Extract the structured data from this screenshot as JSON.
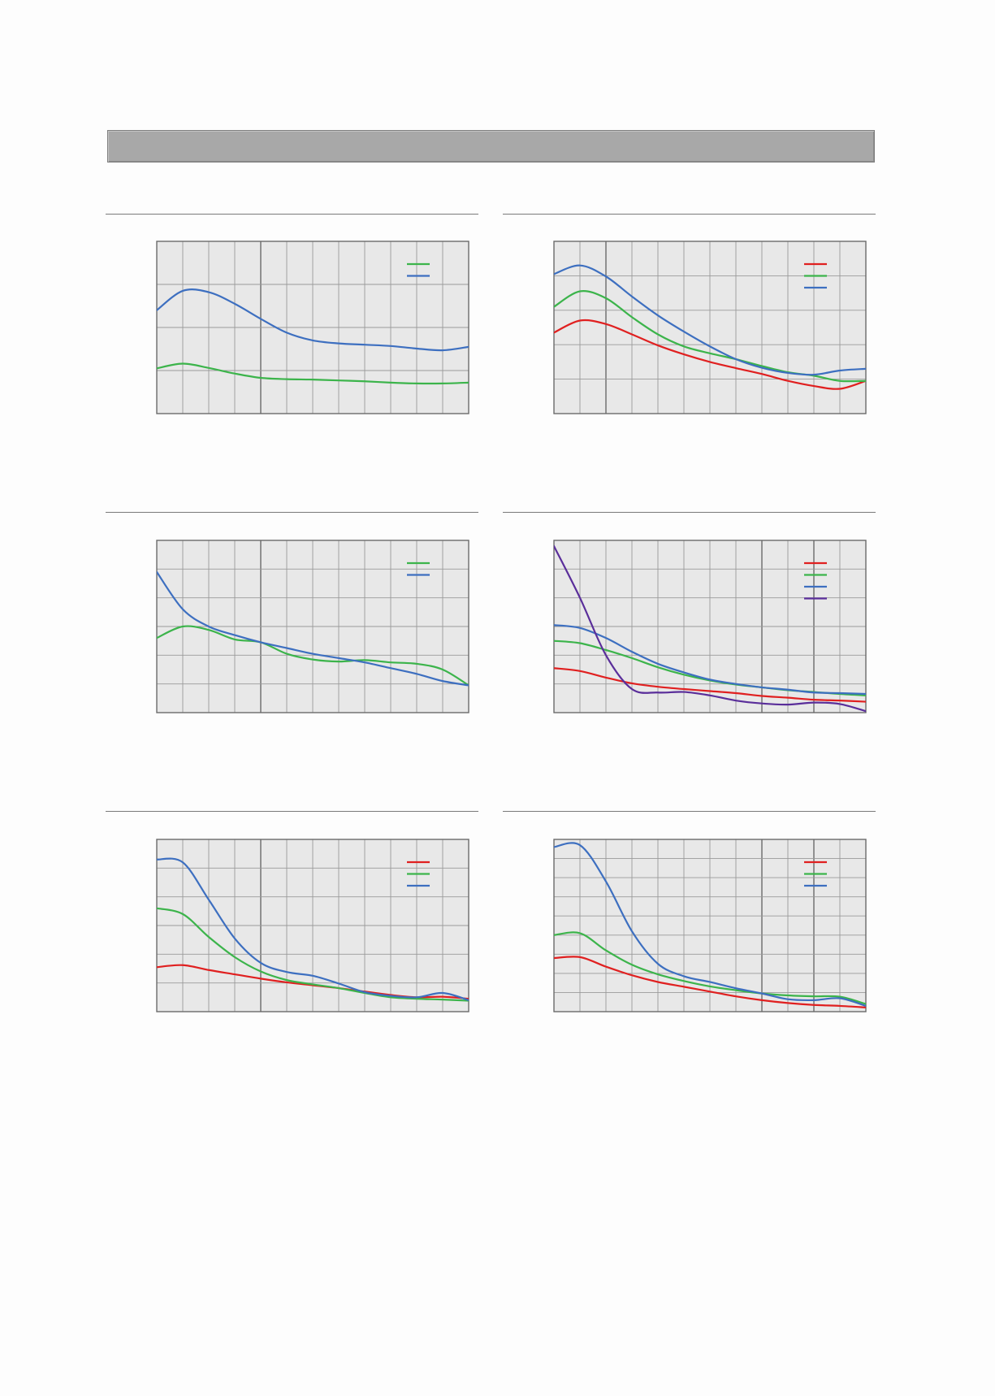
{
  "page": {
    "header_bar_color": "#a8a8a8",
    "background": "#fdfdfd"
  },
  "chart_data": [
    {
      "type": "line",
      "grid": true,
      "legend_placement": "top-right",
      "xlim": [
        0,
        12
      ],
      "ylim": [
        0,
        4
      ],
      "x_divisions": 12,
      "y_divisions": 4,
      "x_major": [
        4
      ],
      "series": [
        {
          "color": "#3cb44b",
          "points": [
            [
              0,
              1.05
            ],
            [
              1,
              1.16
            ],
            [
              2,
              1.06
            ],
            [
              3,
              0.93
            ],
            [
              4,
              0.83
            ],
            [
              5,
              0.8
            ],
            [
              6,
              0.79
            ],
            [
              7,
              0.77
            ],
            [
              8,
              0.75
            ],
            [
              9,
              0.72
            ],
            [
              10,
              0.7
            ],
            [
              11,
              0.7
            ],
            [
              12,
              0.72
            ]
          ]
        },
        {
          "color": "#3d6fc0",
          "points": [
            [
              0,
              2.4
            ],
            [
              1,
              2.85
            ],
            [
              2,
              2.82
            ],
            [
              3,
              2.55
            ],
            [
              4,
              2.2
            ],
            [
              5,
              1.88
            ],
            [
              6,
              1.7
            ],
            [
              7,
              1.63
            ],
            [
              8,
              1.6
            ],
            [
              9,
              1.57
            ],
            [
              10,
              1.51
            ],
            [
              11,
              1.47
            ],
            [
              12,
              1.55
            ]
          ]
        }
      ]
    },
    {
      "type": "line",
      "grid": true,
      "legend_placement": "top-right",
      "xlim": [
        0,
        12
      ],
      "ylim": [
        0,
        5
      ],
      "x_divisions": 12,
      "y_divisions": 5,
      "x_major": [
        2
      ],
      "series": [
        {
          "color": "#e02020",
          "points": [
            [
              0,
              2.35
            ],
            [
              1,
              2.7
            ],
            [
              2,
              2.6
            ],
            [
              3,
              2.3
            ],
            [
              4,
              1.98
            ],
            [
              5,
              1.72
            ],
            [
              6,
              1.5
            ],
            [
              7,
              1.32
            ],
            [
              8,
              1.15
            ],
            [
              9,
              0.95
            ],
            [
              10,
              0.8
            ],
            [
              11,
              0.72
            ],
            [
              12,
              0.95
            ]
          ]
        },
        {
          "color": "#3cb44b",
          "points": [
            [
              0,
              3.1
            ],
            [
              1,
              3.55
            ],
            [
              2,
              3.35
            ],
            [
              3,
              2.8
            ],
            [
              4,
              2.3
            ],
            [
              5,
              1.95
            ],
            [
              6,
              1.75
            ],
            [
              7,
              1.58
            ],
            [
              8,
              1.38
            ],
            [
              9,
              1.2
            ],
            [
              10,
              1.1
            ],
            [
              11,
              0.95
            ],
            [
              12,
              0.95
            ]
          ]
        },
        {
          "color": "#3d6fc0",
          "points": [
            [
              0,
              4.05
            ],
            [
              1,
              4.3
            ],
            [
              2,
              3.98
            ],
            [
              3,
              3.4
            ],
            [
              4,
              2.85
            ],
            [
              5,
              2.38
            ],
            [
              6,
              1.95
            ],
            [
              7,
              1.58
            ],
            [
              8,
              1.33
            ],
            [
              9,
              1.18
            ],
            [
              10,
              1.13
            ],
            [
              11,
              1.25
            ],
            [
              12,
              1.3
            ]
          ]
        }
      ]
    },
    {
      "type": "line",
      "grid": true,
      "legend_placement": "top-right",
      "xlim": [
        0,
        12
      ],
      "ylim": [
        0,
        6
      ],
      "x_divisions": 12,
      "y_divisions": 6,
      "x_major": [
        4
      ],
      "series": [
        {
          "color": "#3cb44b",
          "points": [
            [
              0,
              2.6
            ],
            [
              1,
              3.0
            ],
            [
              2,
              2.88
            ],
            [
              3,
              2.55
            ],
            [
              4,
              2.45
            ],
            [
              5,
              2.05
            ],
            [
              6,
              1.85
            ],
            [
              7,
              1.78
            ],
            [
              8,
              1.83
            ],
            [
              9,
              1.75
            ],
            [
              10,
              1.7
            ],
            [
              11,
              1.5
            ],
            [
              12,
              0.95
            ]
          ]
        },
        {
          "color": "#3d6fc0",
          "points": [
            [
              0,
              4.9
            ],
            [
              1,
              3.6
            ],
            [
              2,
              3.0
            ],
            [
              3,
              2.7
            ],
            [
              4,
              2.45
            ],
            [
              5,
              2.25
            ],
            [
              6,
              2.05
            ],
            [
              7,
              1.9
            ],
            [
              8,
              1.75
            ],
            [
              9,
              1.55
            ],
            [
              10,
              1.35
            ],
            [
              11,
              1.1
            ],
            [
              12,
              0.95
            ]
          ]
        }
      ]
    },
    {
      "type": "line",
      "grid": true,
      "legend_placement": "top-right",
      "xlim": [
        0,
        12
      ],
      "ylim": [
        0,
        6
      ],
      "x_divisions": 12,
      "y_divisions": 6,
      "x_major": [
        8,
        10
      ],
      "series": [
        {
          "color": "#e02020",
          "points": [
            [
              0,
              1.55
            ],
            [
              1,
              1.45
            ],
            [
              2,
              1.22
            ],
            [
              3,
              1.02
            ],
            [
              4,
              0.9
            ],
            [
              5,
              0.82
            ],
            [
              6,
              0.75
            ],
            [
              7,
              0.68
            ],
            [
              8,
              0.58
            ],
            [
              9,
              0.52
            ],
            [
              10,
              0.45
            ],
            [
              11,
              0.42
            ],
            [
              12,
              0.38
            ]
          ]
        },
        {
          "color": "#3cb44b",
          "points": [
            [
              0,
              2.5
            ],
            [
              1,
              2.42
            ],
            [
              2,
              2.18
            ],
            [
              3,
              1.9
            ],
            [
              4,
              1.58
            ],
            [
              5,
              1.32
            ],
            [
              6,
              1.12
            ],
            [
              7,
              0.98
            ],
            [
              8,
              0.88
            ],
            [
              9,
              0.78
            ],
            [
              10,
              0.72
            ],
            [
              11,
              0.65
            ],
            [
              12,
              0.6
            ]
          ]
        },
        {
          "color": "#3d6fc0",
          "points": [
            [
              0,
              3.05
            ],
            [
              1,
              2.95
            ],
            [
              2,
              2.6
            ],
            [
              3,
              2.12
            ],
            [
              4,
              1.7
            ],
            [
              5,
              1.4
            ],
            [
              6,
              1.15
            ],
            [
              7,
              1.0
            ],
            [
              8,
              0.88
            ],
            [
              9,
              0.8
            ],
            [
              10,
              0.7
            ],
            [
              11,
              0.68
            ],
            [
              12,
              0.65
            ]
          ]
        },
        {
          "color": "#5a2e9a",
          "points": [
            [
              0,
              5.8
            ],
            [
              1,
              4.0
            ],
            [
              2,
              2.0
            ],
            [
              3,
              0.82
            ],
            [
              4,
              0.7
            ],
            [
              5,
              0.72
            ],
            [
              6,
              0.6
            ],
            [
              7,
              0.42
            ],
            [
              8,
              0.32
            ],
            [
              9,
              0.28
            ],
            [
              10,
              0.35
            ],
            [
              11,
              0.3
            ],
            [
              12,
              0.05
            ]
          ]
        }
      ]
    },
    {
      "type": "line",
      "grid": true,
      "legend_placement": "top-right",
      "xlim": [
        0,
        12
      ],
      "ylim": [
        0,
        6
      ],
      "x_divisions": 12,
      "y_divisions": 6,
      "x_major": [
        4
      ],
      "series": [
        {
          "color": "#e02020",
          "points": [
            [
              0,
              1.55
            ],
            [
              1,
              1.62
            ],
            [
              2,
              1.45
            ],
            [
              3,
              1.3
            ],
            [
              4,
              1.15
            ],
            [
              5,
              1.02
            ],
            [
              6,
              0.92
            ],
            [
              7,
              0.82
            ],
            [
              8,
              0.7
            ],
            [
              9,
              0.58
            ],
            [
              10,
              0.5
            ],
            [
              11,
              0.52
            ],
            [
              12,
              0.45
            ]
          ]
        },
        {
          "color": "#3cb44b",
          "points": [
            [
              0,
              3.6
            ],
            [
              1,
              3.4
            ],
            [
              2,
              2.6
            ],
            [
              3,
              1.9
            ],
            [
              4,
              1.4
            ],
            [
              5,
              1.1
            ],
            [
              6,
              0.95
            ],
            [
              7,
              0.82
            ],
            [
              8,
              0.65
            ],
            [
              9,
              0.5
            ],
            [
              10,
              0.45
            ],
            [
              11,
              0.42
            ],
            [
              12,
              0.38
            ]
          ]
        },
        {
          "color": "#3d6fc0",
          "points": [
            [
              0,
              5.3
            ],
            [
              1,
              5.2
            ],
            [
              2,
              3.9
            ],
            [
              3,
              2.55
            ],
            [
              4,
              1.7
            ],
            [
              5,
              1.38
            ],
            [
              6,
              1.25
            ],
            [
              7,
              0.98
            ],
            [
              8,
              0.68
            ],
            [
              9,
              0.55
            ],
            [
              10,
              0.5
            ],
            [
              11,
              0.65
            ],
            [
              12,
              0.4
            ]
          ]
        }
      ]
    },
    {
      "type": "line",
      "grid": true,
      "legend_placement": "top-right",
      "xlim": [
        0,
        12
      ],
      "ylim": [
        0,
        9
      ],
      "x_divisions": 12,
      "y_divisions": 9,
      "x_major": [
        8,
        10
      ],
      "series": [
        {
          "color": "#e02020",
          "points": [
            [
              0,
              2.8
            ],
            [
              1,
              2.85
            ],
            [
              2,
              2.35
            ],
            [
              3,
              1.9
            ],
            [
              4,
              1.55
            ],
            [
              5,
              1.3
            ],
            [
              6,
              1.05
            ],
            [
              7,
              0.8
            ],
            [
              8,
              0.6
            ],
            [
              9,
              0.45
            ],
            [
              10,
              0.35
            ],
            [
              11,
              0.3
            ],
            [
              12,
              0.22
            ]
          ]
        },
        {
          "color": "#3cb44b",
          "points": [
            [
              0,
              4.0
            ],
            [
              1,
              4.1
            ],
            [
              2,
              3.2
            ],
            [
              3,
              2.45
            ],
            [
              4,
              1.95
            ],
            [
              5,
              1.6
            ],
            [
              6,
              1.32
            ],
            [
              7,
              1.12
            ],
            [
              8,
              0.95
            ],
            [
              9,
              0.85
            ],
            [
              10,
              0.8
            ],
            [
              11,
              0.78
            ],
            [
              12,
              0.4
            ]
          ]
        },
        {
          "color": "#3d6fc0",
          "points": [
            [
              0,
              8.6
            ],
            [
              1,
              8.7
            ],
            [
              2,
              6.8
            ],
            [
              3,
              4.2
            ],
            [
              4,
              2.5
            ],
            [
              5,
              1.85
            ],
            [
              6,
              1.55
            ],
            [
              7,
              1.22
            ],
            [
              8,
              0.95
            ],
            [
              9,
              0.65
            ],
            [
              10,
              0.6
            ],
            [
              11,
              0.7
            ],
            [
              12,
              0.3
            ]
          ]
        }
      ]
    }
  ]
}
